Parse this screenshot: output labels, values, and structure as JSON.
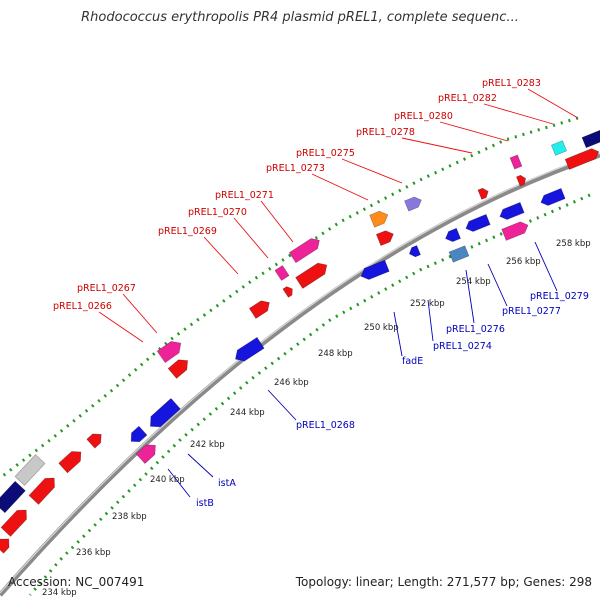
{
  "title": "Rhodococcus erythropolis PR4 plasmid pREL1, complete sequenc...",
  "footer": {
    "accession": "Accession: NC_007491",
    "summary": "Topology: linear; Length: 271,577 bp; Genes: 298"
  },
  "colors": {
    "red": "#ee1111",
    "pink": "#ee2299",
    "blue": "#1515dd",
    "navy": "#0c0c78",
    "orange": "#ff8c1a",
    "purple": "#8877dd",
    "steel": "#4a86c0",
    "cyan": "#22eeee",
    "gray": "#c8c8c8",
    "backbone": "#8a8a8a",
    "gc": "#229922",
    "label_red": "#cc0000",
    "label_blue": "#0000bb"
  },
  "ticks": [
    "234 kbp",
    "236 kbp",
    "238 kbp",
    "240 kbp",
    "242 kbp",
    "244 kbp",
    "246 kbp",
    "248 kbp",
    "250 kbp",
    "252 kbp",
    "254 kbp",
    "256 kbp",
    "258 kbp"
  ],
  "forward_labels": [
    "pREL1_0266",
    "pREL1_0267",
    "pREL1_0269",
    "pREL1_0270",
    "pREL1_0271",
    "pREL1_0273",
    "pREL1_0275",
    "pREL1_0278",
    "pREL1_0280",
    "pREL1_0282",
    "pREL1_0283"
  ],
  "reverse_labels": [
    "istB",
    "istA",
    "pREL1_0268",
    "fadE",
    "pREL1_0274",
    "pREL1_0276",
    "pREL1_0277",
    "pREL1_0279"
  ]
}
